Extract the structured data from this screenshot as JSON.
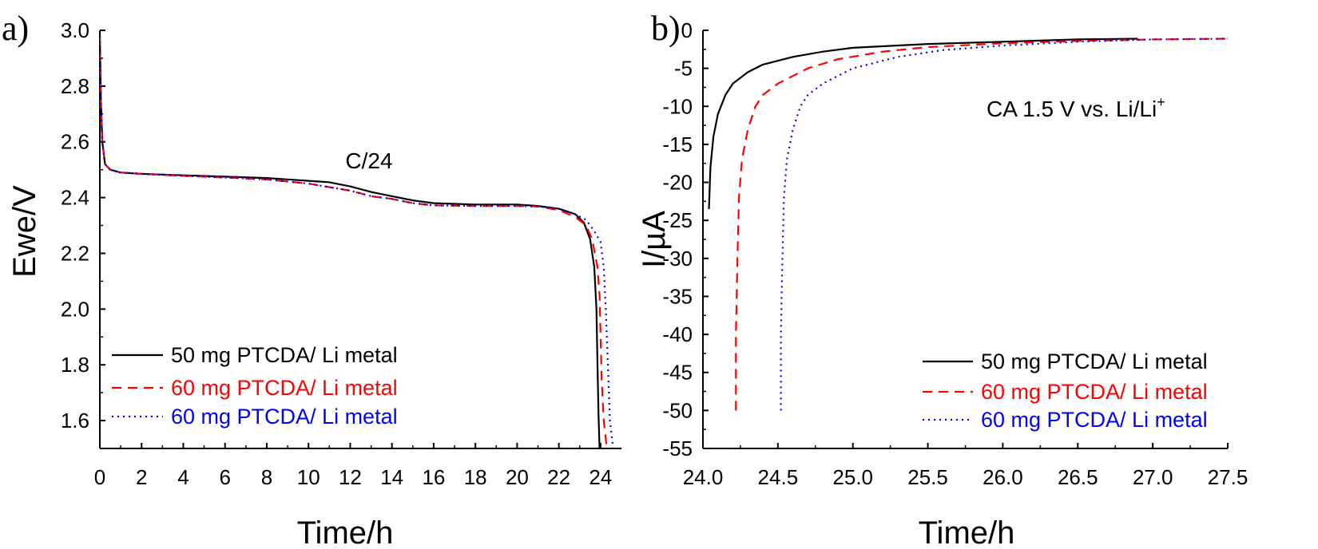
{
  "chart_data": [
    {
      "type": "line",
      "panel_label": "a)",
      "xlabel": "Time/h",
      "ylabel": "Ewe/V",
      "xlim": [
        0,
        25
      ],
      "ylim": [
        1.5,
        3.0
      ],
      "xticks": [
        0,
        2,
        4,
        6,
        8,
        10,
        12,
        14,
        16,
        18,
        20,
        22,
        24
      ],
      "yticks": [
        1.6,
        1.8,
        2.0,
        2.2,
        2.4,
        2.6,
        2.8,
        3.0
      ],
      "ytick_labels": [
        "1.6",
        "1.8",
        "2.0",
        "2.2",
        "2.4",
        "2.6",
        "2.8",
        "3.0"
      ],
      "annotation": "C/24",
      "grid": false,
      "legend_position": "bottom-left",
      "series": [
        {
          "name": "50 mg PTCDA/ Li metal",
          "color": "#000000",
          "style": "solid",
          "points": [
            [
              0.0,
              2.98
            ],
            [
              0.05,
              2.75
            ],
            [
              0.12,
              2.6
            ],
            [
              0.25,
              2.52
            ],
            [
              0.5,
              2.5
            ],
            [
              1,
              2.49
            ],
            [
              2,
              2.485
            ],
            [
              4,
              2.48
            ],
            [
              6,
              2.475
            ],
            [
              8,
              2.47
            ],
            [
              10,
              2.46
            ],
            [
              11,
              2.455
            ],
            [
              12,
              2.44
            ],
            [
              13,
              2.42
            ],
            [
              14,
              2.405
            ],
            [
              15,
              2.39
            ],
            [
              16,
              2.38
            ],
            [
              18,
              2.375
            ],
            [
              20,
              2.375
            ],
            [
              21,
              2.37
            ],
            [
              22,
              2.36
            ],
            [
              22.8,
              2.34
            ],
            [
              23.2,
              2.31
            ],
            [
              23.5,
              2.25
            ],
            [
              23.7,
              2.15
            ],
            [
              23.8,
              2.0
            ],
            [
              23.85,
              1.8
            ],
            [
              23.9,
              1.62
            ],
            [
              23.95,
              1.5
            ]
          ]
        },
        {
          "name": "60 mg PTCDA/ Li metal",
          "color": "#ff0000",
          "style": "dashed",
          "points": [
            [
              0.0,
              2.98
            ],
            [
              0.05,
              2.75
            ],
            [
              0.12,
              2.6
            ],
            [
              0.25,
              2.52
            ],
            [
              0.5,
              2.5
            ],
            [
              1,
              2.49
            ],
            [
              2,
              2.485
            ],
            [
              4,
              2.478
            ],
            [
              6,
              2.472
            ],
            [
              8,
              2.465
            ],
            [
              10,
              2.45
            ],
            [
              12,
              2.425
            ],
            [
              13,
              2.405
            ],
            [
              14,
              2.395
            ],
            [
              15,
              2.38
            ],
            [
              16,
              2.372
            ],
            [
              18,
              2.37
            ],
            [
              20,
              2.37
            ],
            [
              21,
              2.368
            ],
            [
              22,
              2.355
            ],
            [
              22.8,
              2.33
            ],
            [
              23.3,
              2.3
            ],
            [
              23.6,
              2.25
            ],
            [
              23.85,
              2.15
            ],
            [
              23.95,
              2.05
            ],
            [
              24.0,
              1.9
            ],
            [
              24.05,
              1.75
            ],
            [
              24.15,
              1.6
            ],
            [
              24.3,
              1.5
            ]
          ]
        },
        {
          "name": "60 mg PTCDA/ Li metal",
          "color": "#0000ff",
          "style": "dotted",
          "points": [
            [
              0.0,
              2.98
            ],
            [
              0.05,
              2.75
            ],
            [
              0.12,
              2.6
            ],
            [
              0.25,
              2.52
            ],
            [
              0.5,
              2.5
            ],
            [
              1,
              2.49
            ],
            [
              2,
              2.485
            ],
            [
              4,
              2.478
            ],
            [
              6,
              2.472
            ],
            [
              8,
              2.465
            ],
            [
              10,
              2.45
            ],
            [
              12,
              2.425
            ],
            [
              13,
              2.405
            ],
            [
              14,
              2.395
            ],
            [
              15,
              2.38
            ],
            [
              16,
              2.372
            ],
            [
              18,
              2.37
            ],
            [
              20,
              2.37
            ],
            [
              21,
              2.368
            ],
            [
              22,
              2.36
            ],
            [
              22.8,
              2.34
            ],
            [
              23.3,
              2.32
            ],
            [
              23.7,
              2.28
            ],
            [
              24.0,
              2.24
            ],
            [
              24.15,
              2.15
            ],
            [
              24.25,
              2.0
            ],
            [
              24.35,
              1.8
            ],
            [
              24.45,
              1.6
            ],
            [
              24.6,
              1.5
            ]
          ]
        }
      ]
    },
    {
      "type": "line",
      "panel_label": "b)",
      "xlabel": "Time/h",
      "ylabel": "I/µA",
      "xlim": [
        24.0,
        27.5
      ],
      "ylim": [
        -55,
        0
      ],
      "xticks": [
        24.0,
        24.5,
        25.0,
        25.5,
        26.0,
        26.5,
        27.0,
        27.5
      ],
      "xtick_labels": [
        "24.0",
        "24.5",
        "25.0",
        "25.5",
        "26.0",
        "26.5",
        "27.0",
        "27.5"
      ],
      "yticks": [
        0,
        -5,
        -10,
        -15,
        -20,
        -25,
        -30,
        -35,
        -40,
        -45,
        -50,
        -55
      ],
      "annotation": "CA 1.5 V vs. Li/Li",
      "annotation_superscript": "+",
      "grid": false,
      "legend_position": "bottom-right",
      "series": [
        {
          "name": "50 mg PTCDA/ Li metal",
          "color": "#000000",
          "style": "solid",
          "points": [
            [
              24.04,
              -23.5
            ],
            [
              24.05,
              -18
            ],
            [
              24.07,
              -14
            ],
            [
              24.1,
              -11
            ],
            [
              24.15,
              -8.5
            ],
            [
              24.2,
              -7
            ],
            [
              24.3,
              -5.5
            ],
            [
              24.4,
              -4.5
            ],
            [
              24.6,
              -3.5
            ],
            [
              24.8,
              -2.8
            ],
            [
              25.0,
              -2.3
            ],
            [
              25.5,
              -1.8
            ],
            [
              26.0,
              -1.5
            ],
            [
              26.5,
              -1.2
            ],
            [
              26.9,
              -1.1
            ]
          ]
        },
        {
          "name": "60 mg PTCDA/ Li metal",
          "color": "#ff0000",
          "style": "dashed",
          "points": [
            [
              24.22,
              -50
            ],
            [
              24.22,
              -40
            ],
            [
              24.23,
              -30
            ],
            [
              24.24,
              -22
            ],
            [
              24.26,
              -17
            ],
            [
              24.3,
              -13
            ],
            [
              24.35,
              -10
            ],
            [
              24.4,
              -8.5
            ],
            [
              24.5,
              -7
            ],
            [
              24.7,
              -5
            ],
            [
              24.9,
              -3.8
            ],
            [
              25.2,
              -2.8
            ],
            [
              25.5,
              -2.2
            ],
            [
              26.0,
              -1.7
            ],
            [
              26.5,
              -1.4
            ],
            [
              27.0,
              -1.2
            ],
            [
              27.5,
              -1.1
            ]
          ]
        },
        {
          "name": "60 mg PTCDA/ Li metal",
          "color": "#0000ff",
          "style": "dotted",
          "points": [
            [
              24.52,
              -50
            ],
            [
              24.52,
              -40
            ],
            [
              24.53,
              -30
            ],
            [
              24.54,
              -22
            ],
            [
              24.56,
              -17
            ],
            [
              24.6,
              -13
            ],
            [
              24.65,
              -10
            ],
            [
              24.7,
              -8.5
            ],
            [
              24.8,
              -7
            ],
            [
              25.0,
              -5
            ],
            [
              25.3,
              -3.5
            ],
            [
              25.6,
              -2.6
            ],
            [
              26.0,
              -2.0
            ],
            [
              26.5,
              -1.5
            ],
            [
              27.0,
              -1.2
            ],
            [
              27.5,
              -1.1
            ]
          ]
        }
      ]
    }
  ]
}
